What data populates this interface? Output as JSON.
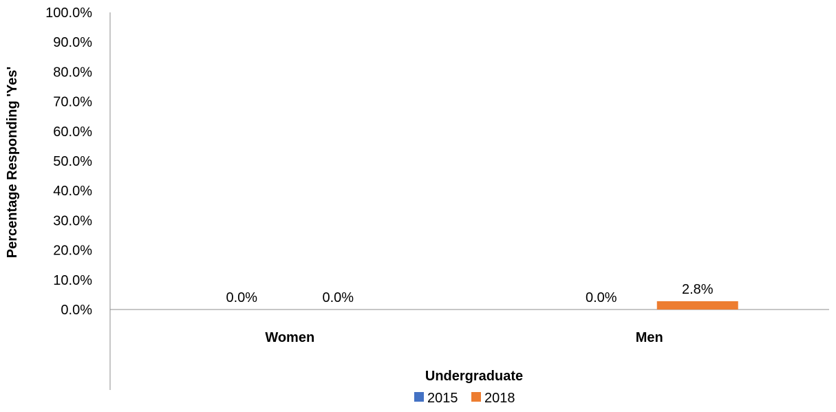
{
  "chart_data": {
    "type": "bar",
    "categories": [
      "Women",
      "Men"
    ],
    "series": [
      {
        "name": "2015",
        "color": "#4472C4",
        "values": [
          0.0,
          0.0
        ],
        "labels": [
          "0.0%",
          "0.0%"
        ]
      },
      {
        "name": "2018",
        "color": "#ED7D31",
        "values": [
          0.0,
          2.8
        ],
        "labels": [
          "0.0%",
          "2.8%"
        ]
      }
    ],
    "title": "",
    "xlabel": "Undergraduate",
    "ylabel": "Percentage Responding 'Yes'",
    "ylim": [
      0,
      100
    ],
    "yticks": [
      "0.0%",
      "10.0%",
      "20.0%",
      "30.0%",
      "40.0%",
      "50.0%",
      "60.0%",
      "70.0%",
      "80.0%",
      "90.0%",
      "100.0%"
    ],
    "grid": false,
    "legend": "bottom"
  }
}
